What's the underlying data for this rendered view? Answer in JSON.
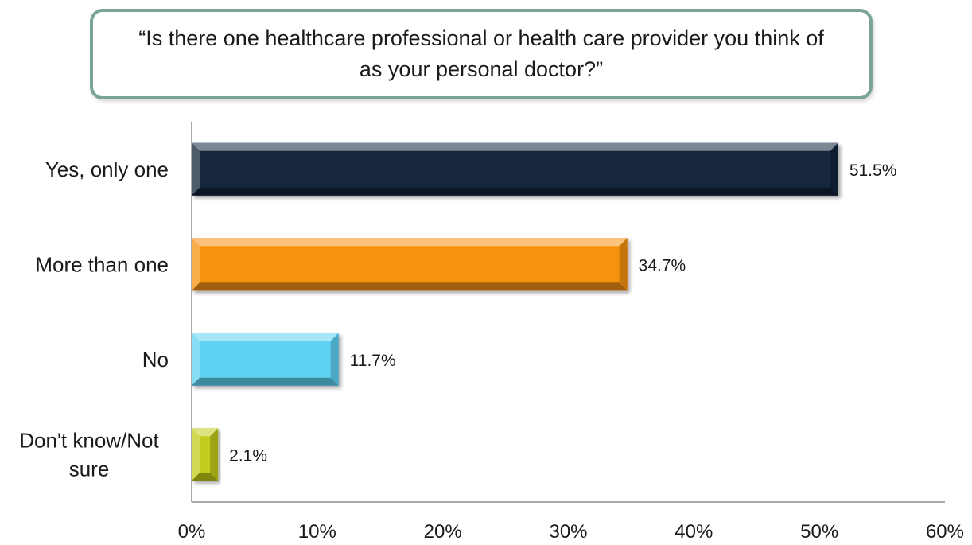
{
  "title": "“Is there one healthcare professional or health care provider you think of as your personal doctor?”",
  "chart_data": {
    "type": "bar",
    "orientation": "horizontal",
    "title": "“Is there one healthcare professional or health care provider you think of as your personal doctor?”",
    "categories": [
      "Yes, only one",
      "More than one",
      "No",
      "Don't know/Not sure"
    ],
    "category_lines": [
      [
        "Yes, only one"
      ],
      [
        "More than one"
      ],
      [
        "No"
      ],
      [
        "Don't know/Not",
        "sure"
      ]
    ],
    "values": [
      51.5,
      34.7,
      11.7,
      2.1
    ],
    "data_labels": [
      "51.5%",
      "34.7%",
      "11.7%",
      "2.1%"
    ],
    "colors": [
      "#13253a",
      "#f7920f",
      "#5fd2f2",
      "#c3cc1a"
    ],
    "xlim": [
      0,
      60
    ],
    "ticks": [
      0,
      10,
      20,
      30,
      40,
      50,
      60
    ],
    "tick_labels": [
      "0%",
      "10%",
      "20%",
      "30%",
      "40%",
      "50%",
      "60%"
    ],
    "xlabel": "",
    "ylabel": "",
    "grid": false,
    "legend": "none"
  }
}
